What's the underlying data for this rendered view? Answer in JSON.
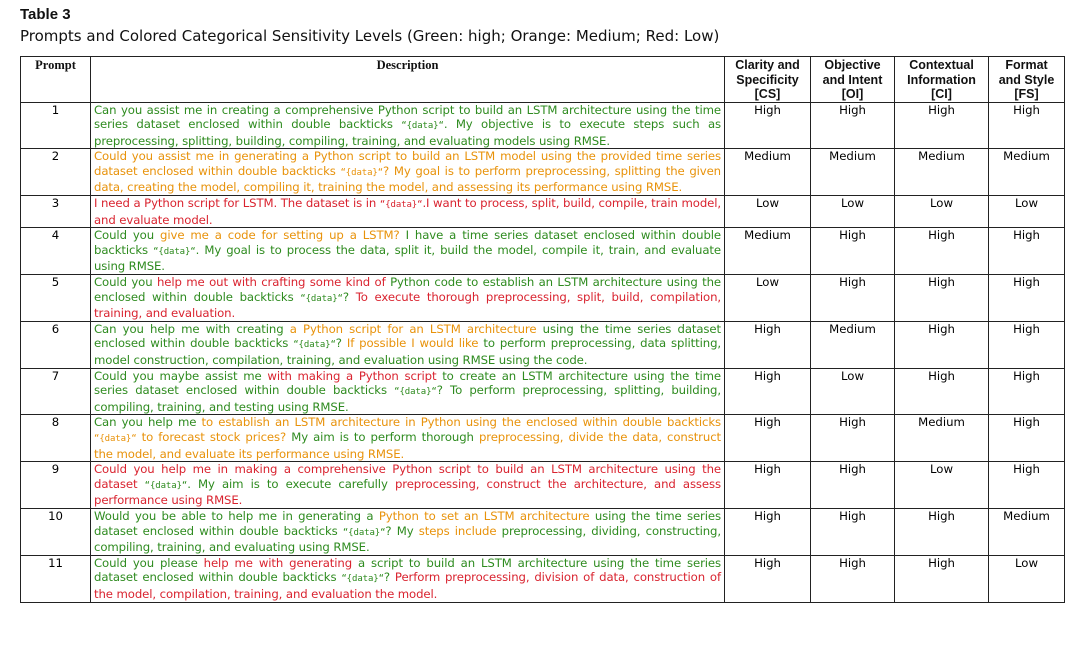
{
  "table_label": "Table 3",
  "caption": "Prompts and Colored Categorical Sensitivity Levels (Green: high; Orange: Medium; Red: Low)",
  "colors": {
    "high": "#2e8b1f",
    "medium": "#e8920a",
    "low": "#d9232f"
  },
  "headers": {
    "prompt": "Prompt",
    "description": "Description",
    "cs": [
      "Clarity and",
      "Specificity",
      "[CS]"
    ],
    "oi": [
      "Objective",
      "and Intent",
      "[OI]"
    ],
    "ci": [
      "Contextual",
      "Information",
      "[CI]"
    ],
    "fs": [
      "Format",
      "and Style",
      "[FS]"
    ]
  },
  "rows": [
    {
      "prompt": "1",
      "segments": [
        {
          "t": "Can you assist me in creating a comprehensive Python script to build an LSTM architecture using the time series dataset enclosed within double backticks ",
          "c": "g"
        },
        {
          "t": "“{data}“",
          "c": "g",
          "mono": true
        },
        {
          "t": ". My objective is to execute steps such as preprocessing, splitting, building, compiling, training, and evaluating models using RMSE.",
          "c": "g"
        }
      ],
      "cs": "High",
      "oi": "High",
      "ci": "High",
      "fs": "High"
    },
    {
      "prompt": "2",
      "segments": [
        {
          "t": "Could you assist me in generating a Python script to build an LSTM model using the provided time series dataset enclosed within double backticks ",
          "c": "o"
        },
        {
          "t": "“{data}“",
          "c": "o",
          "mono": true
        },
        {
          "t": "? My goal is to perform preprocessing, splitting the given data, creating the model, compiling it, training the model, and assessing its performance using RMSE.",
          "c": "o"
        }
      ],
      "cs": "Medium",
      "oi": "Medium",
      "ci": "Medium",
      "fs": "Medium"
    },
    {
      "prompt": "3",
      "segments": [
        {
          "t": "I need a Python script for LSTM. The dataset is in ",
          "c": "r"
        },
        {
          "t": "“{data}“",
          "c": "r",
          "mono": true
        },
        {
          "t": ".I want to process, split, build, compile, train model, and evaluate model.",
          "c": "r"
        }
      ],
      "cs": "Low",
      "oi": "Low",
      "ci": "Low",
      "fs": "Low"
    },
    {
      "prompt": "4",
      "segments": [
        {
          "t": "Could you ",
          "c": "g"
        },
        {
          "t": "give me a code for setting up a LSTM?",
          "c": "o"
        },
        {
          "t": " I have a time series dataset enclosed within double backticks ",
          "c": "g"
        },
        {
          "t": "“{data}“",
          "c": "g",
          "mono": true
        },
        {
          "t": ". My goal is to process the data, split it, build the model, compile it, train, and evaluate using RMSE.",
          "c": "g"
        }
      ],
      "cs": "Medium",
      "oi": "High",
      "ci": "High",
      "fs": "High"
    },
    {
      "prompt": "5",
      "segments": [
        {
          "t": "Could you ",
          "c": "g"
        },
        {
          "t": "help me out with crafting some kind of",
          "c": "r"
        },
        {
          "t": " Python code to establish an LSTM architecture using the enclosed within double backticks ",
          "c": "g"
        },
        {
          "t": "“{data}“",
          "c": "g",
          "mono": true
        },
        {
          "t": "? ",
          "c": "g"
        },
        {
          "t": "To execute thorough preprocessing, split, build, compilation, training, and evaluation.",
          "c": "r"
        }
      ],
      "cs": "Low",
      "oi": "High",
      "ci": "High",
      "fs": "High"
    },
    {
      "prompt": "6",
      "segments": [
        {
          "t": "Can you help me with creating ",
          "c": "g"
        },
        {
          "t": "a Python script for an LSTM architecture",
          "c": "o"
        },
        {
          "t": " using the time series dataset enclosed within double backticks ",
          "c": "g"
        },
        {
          "t": "“{data}“",
          "c": "g",
          "mono": true
        },
        {
          "t": "? ",
          "c": "g"
        },
        {
          "t": "If possible I would like",
          "c": "o"
        },
        {
          "t": " to perform preprocessing, data splitting, model construction, compilation, training, and evaluation using RMSE using the code.",
          "c": "g"
        }
      ],
      "cs": "High",
      "oi": "Medium",
      "ci": "High",
      "fs": "High"
    },
    {
      "prompt": "7",
      "segments": [
        {
          "t": "Could you maybe assist me ",
          "c": "g"
        },
        {
          "t": "with making a Python script",
          "c": "r"
        },
        {
          "t": " to create an LSTM architecture using the time series dataset enclosed within double backticks ",
          "c": "g"
        },
        {
          "t": "“{data}“",
          "c": "g",
          "mono": true
        },
        {
          "t": "? To perform preprocessing, splitting, building, compiling, training, and testing using RMSE.",
          "c": "g"
        }
      ],
      "cs": "High",
      "oi": "Low",
      "ci": "High",
      "fs": "High"
    },
    {
      "prompt": "8",
      "segments": [
        {
          "t": "Can you help me ",
          "c": "g"
        },
        {
          "t": "to establish an LSTM architecture in Python using the enclosed within double backticks ",
          "c": "o"
        },
        {
          "t": "“{data}“",
          "c": "o",
          "mono": true
        },
        {
          "t": " to forecast stock prices?",
          "c": "o"
        },
        {
          "t": " My aim is to perform thorough ",
          "c": "g"
        },
        {
          "t": "preprocessing, divide the data, construct the model, and evaluate its performance using RMSE.",
          "c": "o"
        }
      ],
      "cs": "High",
      "oi": "High",
      "ci": "Medium",
      "fs": "High"
    },
    {
      "prompt": "9",
      "segments": [
        {
          "t": "Could you help me in making a comprehensive Python script to build an LSTM architecture using the dataset ",
          "c": "r"
        },
        {
          "t": "“{data}“",
          "c": "g",
          "mono": true
        },
        {
          "t": ". My aim is to execute carefully ",
          "c": "g"
        },
        {
          "t": "preprocessing, construct the architecture, and assess performance using RMSE.",
          "c": "r"
        }
      ],
      "cs": "High",
      "oi": "High",
      "ci": "Low",
      "fs": "High"
    },
    {
      "prompt": "10",
      "segments": [
        {
          "t": "Would you be able to help me in generating a ",
          "c": "g"
        },
        {
          "t": "Python to set an LSTM architecture",
          "c": "o"
        },
        {
          "t": " using the time series dataset enclosed within double backticks ",
          "c": "g"
        },
        {
          "t": "“{data}“",
          "c": "g",
          "mono": true
        },
        {
          "t": "? My ",
          "c": "g"
        },
        {
          "t": "steps include",
          "c": "o"
        },
        {
          "t": " preprocessing, dividing, constructing, compiling, training, and evaluating using RMSE.",
          "c": "g"
        }
      ],
      "cs": "High",
      "oi": "High",
      "ci": "High",
      "fs": "Medium"
    },
    {
      "prompt": "11",
      "segments": [
        {
          "t": "Could you please ",
          "c": "g"
        },
        {
          "t": "help me with generating",
          "c": "r"
        },
        {
          "t": " a script to build an LSTM architecture using the time series dataset enclosed within double backticks ",
          "c": "g"
        },
        {
          "t": "“{data}“",
          "c": "g",
          "mono": true
        },
        {
          "t": "? ",
          "c": "g"
        },
        {
          "t": "Perform preprocessing, division of data, construction of the model, compilation, training, and evaluation the model.",
          "c": "r"
        }
      ],
      "cs": "High",
      "oi": "High",
      "ci": "High",
      "fs": "Low"
    }
  ]
}
